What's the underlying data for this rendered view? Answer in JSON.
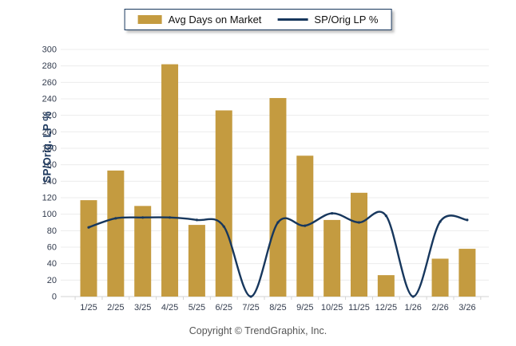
{
  "legend": {
    "bar_label": "Avg Days on Market",
    "line_label": "SP/Orig LP %"
  },
  "y_axis": {
    "title": "SP/Orig. LP %",
    "min": 0,
    "max": 300,
    "step": 20
  },
  "footer": {
    "copyright": "Copyright © TrendGraphix, Inc."
  },
  "colors": {
    "bar": "#C49B40",
    "line": "#17375D",
    "grid": "#ECECEC",
    "axis": "#D3D3D3",
    "tick_text": "#333C4E",
    "axis_title": "#1F3A5F",
    "legend_border": "#17375D",
    "footer_text": "#555555"
  },
  "chart_data": {
    "type": "bar",
    "subtype": "bar+spline-line combo",
    "categories": [
      "1/25",
      "2/25",
      "3/25",
      "4/25",
      "5/25",
      "6/25",
      "7/25",
      "8/25",
      "9/25",
      "10/25",
      "11/25",
      "12/25",
      "1/26",
      "2/26",
      "3/26"
    ],
    "series": [
      {
        "name": "Avg Days on Market",
        "type": "bar",
        "values": [
          117,
          153,
          110,
          282,
          87,
          226,
          0,
          241,
          171,
          93,
          126,
          26,
          0,
          46,
          58
        ]
      },
      {
        "name": "SP/Orig LP %",
        "type": "line",
        "values": [
          84,
          95,
          96,
          96,
          93,
          85,
          0,
          90,
          86,
          101,
          90,
          98,
          0,
          91,
          93
        ]
      }
    ],
    "title": "",
    "xlabel": "",
    "ylabel": "SP/Orig. LP %",
    "ylim": [
      0,
      300
    ],
    "ytick_step": 20,
    "grid": true,
    "legend_position": "top-center"
  }
}
